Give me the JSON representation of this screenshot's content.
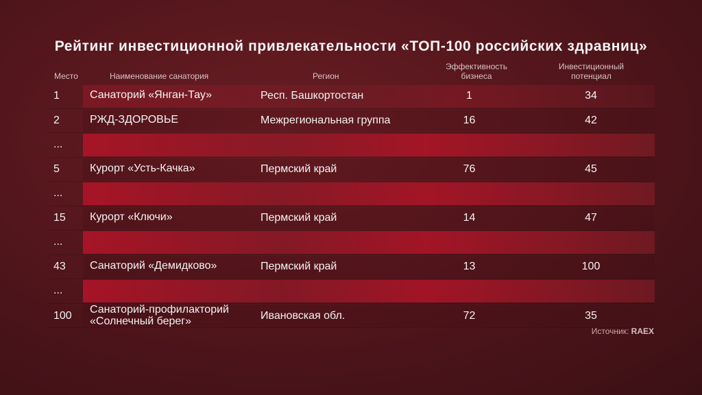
{
  "title": "Рейтинг инвестиционной привлекательности «ТОП-100 российских здравниц»",
  "headers": {
    "place": "Место",
    "name": "Наименование санатория",
    "region": "Регион",
    "efficiency_line1": "Эффективность",
    "efficiency_line2": "бизнеса",
    "investment_line1": "Инвестиционный",
    "investment_line2": "потенциал"
  },
  "rows": [
    {
      "place": "1",
      "name": "Санаторий «Янган-Тау»",
      "region": "Респ. Башкортостан",
      "efficiency": "1",
      "investment": "34"
    },
    {
      "place": "2",
      "name": "РЖД-ЗДОРОВЬЕ",
      "region": "Межрегиональная группа",
      "efficiency": "16",
      "investment": "42"
    },
    {
      "place": "..."
    },
    {
      "place": "5",
      "name": "Курорт «Усть-Качка»",
      "region": "Пермский край",
      "efficiency": "76",
      "investment": "45"
    },
    {
      "place": "..."
    },
    {
      "place": "15",
      "name": "Курорт «Ключи»",
      "region": "Пермский край",
      "efficiency": "14",
      "investment": "47"
    },
    {
      "place": "..."
    },
    {
      "place": "43",
      "name": "Санаторий «Демидково»",
      "region": "Пермский край",
      "efficiency": "13",
      "investment": "100"
    },
    {
      "place": "..."
    },
    {
      "place": "100",
      "name_line1": "Санаторий-профилакторий",
      "name_line2": "«Солнечный берег»",
      "region": "Ивановская обл.",
      "efficiency": "72",
      "investment": "35"
    }
  ],
  "source": {
    "label": "Источник:",
    "value": "RAEX"
  }
}
